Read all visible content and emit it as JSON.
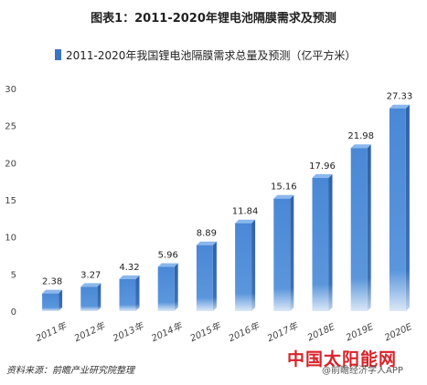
{
  "page": {
    "title": "图表1：2011-2020年锂电池隔膜需求及预测",
    "source": "资料来源：前瞻产业研究院整理",
    "watermark": "中国太阳能网",
    "account": "@前瞻经济学人APP"
  },
  "colors": {
    "bar": "#4f8fd9",
    "bar_side": "#2d5fa6",
    "bar_top": "#8ab7ee",
    "grid": "#e6e6e6",
    "axis_text": "#444444"
  },
  "chart_data": {
    "type": "bar",
    "title": "图表1：2011-2020年锂电池隔膜需求及预测",
    "xlabel": "",
    "ylabel": "",
    "categories": [
      "2011年",
      "2012年",
      "2013年",
      "2014年",
      "2015年",
      "2016年",
      "2017年",
      "2018E",
      "2019E",
      "2020E"
    ],
    "series": [
      {
        "name": "2011-2020年我国锂电池隔膜需求总量及预测（亿平方米）",
        "values": [
          2.38,
          3.27,
          4.32,
          5.96,
          8.89,
          11.84,
          15.16,
          17.96,
          21.98,
          27.33
        ]
      }
    ],
    "ylim": [
      0,
      30
    ],
    "yticks": [
      0,
      5,
      10,
      15,
      20,
      25,
      30
    ],
    "grid": false,
    "legend_position": "top",
    "data_labels": true
  }
}
